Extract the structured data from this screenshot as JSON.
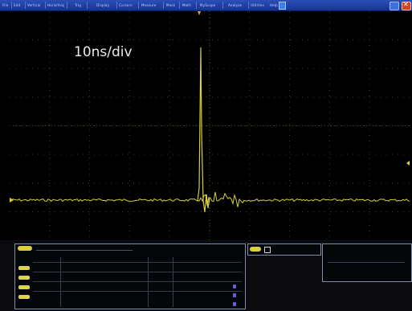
{
  "app": {
    "menu": [
      "File",
      "Edit",
      "Vertical",
      "Horiz/Acq",
      "Trig",
      "Display",
      "Cursors",
      "Measure",
      "Mask",
      "Math",
      "MyScope",
      "Analyze",
      "Utilities",
      "Help"
    ],
    "window_buttons": [
      "minimize",
      "close"
    ]
  },
  "display": {
    "timebase_label": "10ns/div",
    "trace_color": "#d8d038",
    "grid_color": "#4a4a20",
    "background": "#000000"
  },
  "colors": {
    "menubar": "#1f43a6",
    "channel": "#dcd34a",
    "close": "#d24526"
  }
}
